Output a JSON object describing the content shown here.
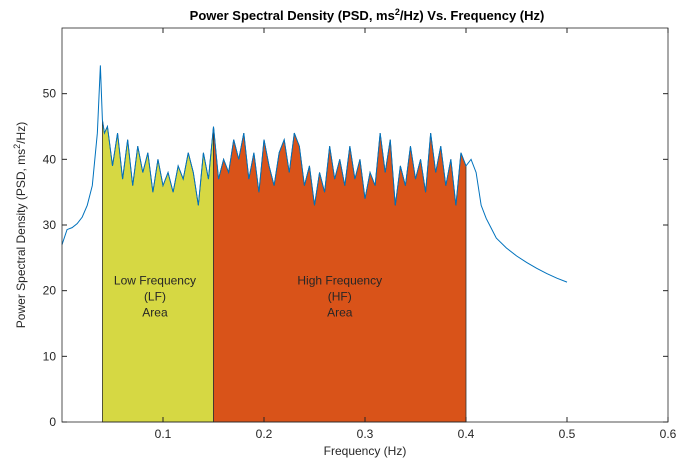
{
  "chart_data": {
    "type": "line",
    "title": [
      "Power Spectral Density (PSD, ms",
      "2",
      "/Hz) Vs. Frequency (Hz)"
    ],
    "xlabel": "Frequency (Hz)",
    "ylabel": [
      "Power Spectral Density (PSD, ms",
      "2",
      "/Hz)"
    ],
    "xlim": [
      0,
      0.6
    ],
    "xticks": [
      0.1,
      0.2,
      0.3,
      0.4,
      0.5,
      0.6
    ],
    "ylim": [
      0,
      60
    ],
    "yticks": [
      0,
      10,
      20,
      30,
      40,
      50
    ],
    "x": [
      0,
      0.005,
      0.01,
      0.015,
      0.02,
      0.025,
      0.03,
      0.035,
      0.038,
      0.04,
      0.042,
      0.045,
      0.05,
      0.055,
      0.06,
      0.065,
      0.07,
      0.075,
      0.08,
      0.085,
      0.09,
      0.095,
      0.1,
      0.105,
      0.11,
      0.115,
      0.12,
      0.125,
      0.13,
      0.135,
      0.14,
      0.145,
      0.15,
      0.155,
      0.16,
      0.165,
      0.17,
      0.175,
      0.18,
      0.185,
      0.19,
      0.195,
      0.2,
      0.205,
      0.21,
      0.215,
      0.22,
      0.225,
      0.23,
      0.235,
      0.24,
      0.245,
      0.25,
      0.255,
      0.26,
      0.265,
      0.27,
      0.275,
      0.28,
      0.285,
      0.29,
      0.295,
      0.3,
      0.305,
      0.31,
      0.315,
      0.32,
      0.325,
      0.33,
      0.335,
      0.34,
      0.345,
      0.35,
      0.355,
      0.36,
      0.365,
      0.37,
      0.375,
      0.38,
      0.385,
      0.39,
      0.395,
      0.4,
      0.405,
      0.41,
      0.415,
      0.42,
      0.425,
      0.43,
      0.44,
      0.45,
      0.46,
      0.47,
      0.48,
      0.49,
      0.5
    ],
    "series": [
      {
        "color": "#0072bd",
        "values": [
          27,
          29.3,
          29.6,
          30.2,
          31.2,
          33,
          36,
          44,
          54.3,
          46,
          44,
          45,
          39,
          44,
          37,
          43,
          36,
          42,
          38,
          41,
          35,
          40,
          36,
          38,
          35,
          39,
          37,
          41,
          38,
          33,
          41,
          37,
          45,
          37,
          40,
          38,
          43,
          40,
          44,
          37,
          41,
          35,
          43,
          39,
          36,
          41,
          43,
          38,
          44,
          42,
          36,
          39,
          33,
          38,
          35,
          42,
          37,
          40,
          36,
          42,
          37,
          40,
          34,
          38,
          36,
          44,
          38,
          43,
          33,
          39,
          36,
          42,
          37,
          40,
          35,
          44,
          38,
          42,
          36,
          40,
          33,
          41,
          39,
          40,
          38,
          33,
          31,
          29.5,
          28,
          26.5,
          25.3,
          24.3,
          23.4,
          22.6,
          21.9,
          21.3
        ]
      }
    ],
    "areas": [
      {
        "label": [
          "Low Frequency",
          "(LF)",
          "Area"
        ],
        "range": [
          0.04,
          0.15
        ],
        "color": "#d6d843"
      },
      {
        "label": [
          "High Frequency",
          "(HF)",
          "Area"
        ],
        "range": [
          0.15,
          0.4
        ],
        "color": "#d95319"
      }
    ]
  }
}
